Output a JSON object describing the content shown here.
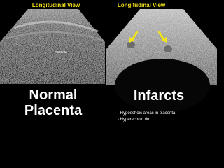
{
  "left": {
    "view_label": "Longitudinal View",
    "image_label": "Placenta",
    "caption": [
      "Normal",
      "Placenta"
    ]
  },
  "right": {
    "view_label": "Longitudinal View",
    "caption": "Infarcts",
    "bullets": [
      "- Hypoechoic areas in placenta",
      "- Hyperechoic rim"
    ]
  }
}
